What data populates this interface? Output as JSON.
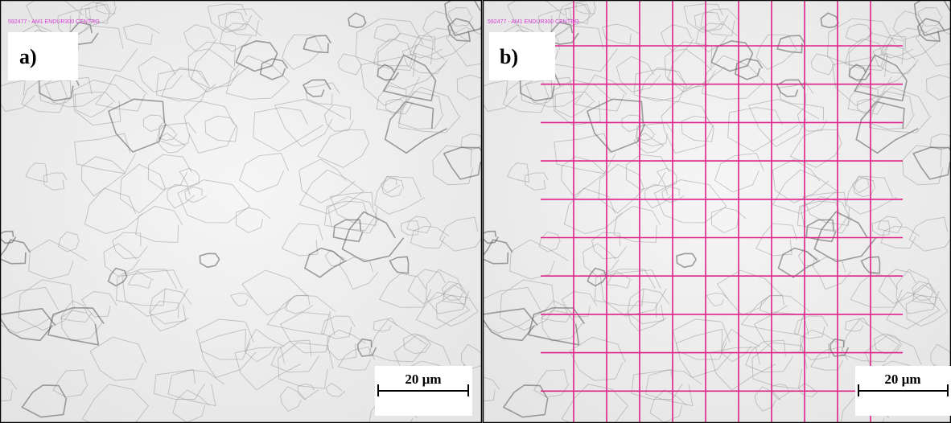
{
  "panels": [
    {
      "label": "a)",
      "caption": "592477 - AM1 ENDUR300 CENTRO",
      "scale_bar": "20 µm"
    },
    {
      "label": "b)",
      "caption": "592477 - AM1 ENDUR300 CENTRO",
      "scale_bar": "20 µm"
    }
  ]
}
